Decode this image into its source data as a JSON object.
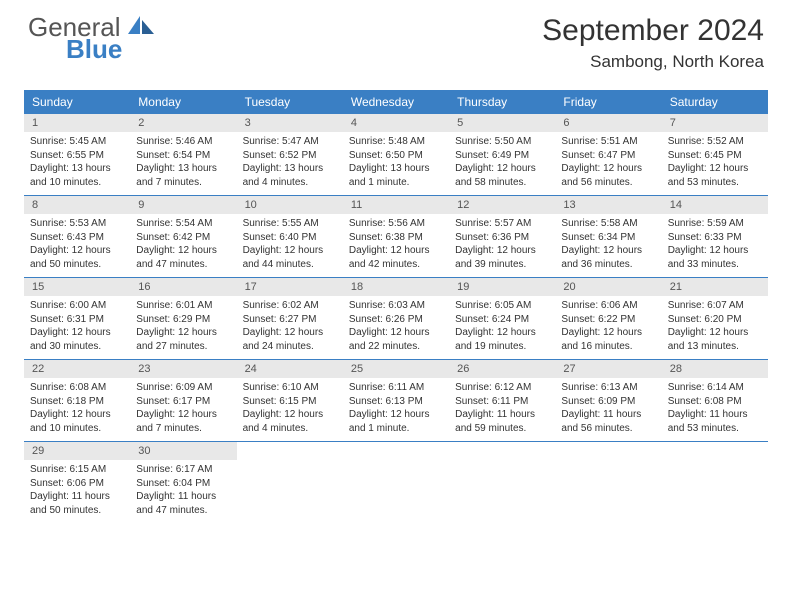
{
  "logo": {
    "text_top": "General",
    "text_bottom": "Blue"
  },
  "title": "September 2024",
  "location": "Sambong, North Korea",
  "colors": {
    "header_bg": "#3a7fc4",
    "daynum_bg": "#e8e8e8",
    "text": "#333333",
    "logo_gray": "#555555",
    "logo_blue": "#3a7fc4",
    "week_border": "#3a7fc4",
    "page_bg": "#ffffff"
  },
  "typography": {
    "month_title_size": 30,
    "location_size": 17,
    "weekday_size": 12,
    "daynum_size": 11,
    "body_size": 10,
    "logo_size": 26
  },
  "weekdays": [
    "Sunday",
    "Monday",
    "Tuesday",
    "Wednesday",
    "Thursday",
    "Friday",
    "Saturday"
  ],
  "days": [
    {
      "n": 1,
      "sunrise": "5:45 AM",
      "sunset": "6:55 PM",
      "daylight": "13 hours and 10 minutes."
    },
    {
      "n": 2,
      "sunrise": "5:46 AM",
      "sunset": "6:54 PM",
      "daylight": "13 hours and 7 minutes."
    },
    {
      "n": 3,
      "sunrise": "5:47 AM",
      "sunset": "6:52 PM",
      "daylight": "13 hours and 4 minutes."
    },
    {
      "n": 4,
      "sunrise": "5:48 AM",
      "sunset": "6:50 PM",
      "daylight": "13 hours and 1 minute."
    },
    {
      "n": 5,
      "sunrise": "5:50 AM",
      "sunset": "6:49 PM",
      "daylight": "12 hours and 58 minutes."
    },
    {
      "n": 6,
      "sunrise": "5:51 AM",
      "sunset": "6:47 PM",
      "daylight": "12 hours and 56 minutes."
    },
    {
      "n": 7,
      "sunrise": "5:52 AM",
      "sunset": "6:45 PM",
      "daylight": "12 hours and 53 minutes."
    },
    {
      "n": 8,
      "sunrise": "5:53 AM",
      "sunset": "6:43 PM",
      "daylight": "12 hours and 50 minutes."
    },
    {
      "n": 9,
      "sunrise": "5:54 AM",
      "sunset": "6:42 PM",
      "daylight": "12 hours and 47 minutes."
    },
    {
      "n": 10,
      "sunrise": "5:55 AM",
      "sunset": "6:40 PM",
      "daylight": "12 hours and 44 minutes."
    },
    {
      "n": 11,
      "sunrise": "5:56 AM",
      "sunset": "6:38 PM",
      "daylight": "12 hours and 42 minutes."
    },
    {
      "n": 12,
      "sunrise": "5:57 AM",
      "sunset": "6:36 PM",
      "daylight": "12 hours and 39 minutes."
    },
    {
      "n": 13,
      "sunrise": "5:58 AM",
      "sunset": "6:34 PM",
      "daylight": "12 hours and 36 minutes."
    },
    {
      "n": 14,
      "sunrise": "5:59 AM",
      "sunset": "6:33 PM",
      "daylight": "12 hours and 33 minutes."
    },
    {
      "n": 15,
      "sunrise": "6:00 AM",
      "sunset": "6:31 PM",
      "daylight": "12 hours and 30 minutes."
    },
    {
      "n": 16,
      "sunrise": "6:01 AM",
      "sunset": "6:29 PM",
      "daylight": "12 hours and 27 minutes."
    },
    {
      "n": 17,
      "sunrise": "6:02 AM",
      "sunset": "6:27 PM",
      "daylight": "12 hours and 24 minutes."
    },
    {
      "n": 18,
      "sunrise": "6:03 AM",
      "sunset": "6:26 PM",
      "daylight": "12 hours and 22 minutes."
    },
    {
      "n": 19,
      "sunrise": "6:05 AM",
      "sunset": "6:24 PM",
      "daylight": "12 hours and 19 minutes."
    },
    {
      "n": 20,
      "sunrise": "6:06 AM",
      "sunset": "6:22 PM",
      "daylight": "12 hours and 16 minutes."
    },
    {
      "n": 21,
      "sunrise": "6:07 AM",
      "sunset": "6:20 PM",
      "daylight": "12 hours and 13 minutes."
    },
    {
      "n": 22,
      "sunrise": "6:08 AM",
      "sunset": "6:18 PM",
      "daylight": "12 hours and 10 minutes."
    },
    {
      "n": 23,
      "sunrise": "6:09 AM",
      "sunset": "6:17 PM",
      "daylight": "12 hours and 7 minutes."
    },
    {
      "n": 24,
      "sunrise": "6:10 AM",
      "sunset": "6:15 PM",
      "daylight": "12 hours and 4 minutes."
    },
    {
      "n": 25,
      "sunrise": "6:11 AM",
      "sunset": "6:13 PM",
      "daylight": "12 hours and 1 minute."
    },
    {
      "n": 26,
      "sunrise": "6:12 AM",
      "sunset": "6:11 PM",
      "daylight": "11 hours and 59 minutes."
    },
    {
      "n": 27,
      "sunrise": "6:13 AM",
      "sunset": "6:09 PM",
      "daylight": "11 hours and 56 minutes."
    },
    {
      "n": 28,
      "sunrise": "6:14 AM",
      "sunset": "6:08 PM",
      "daylight": "11 hours and 53 minutes."
    },
    {
      "n": 29,
      "sunrise": "6:15 AM",
      "sunset": "6:06 PM",
      "daylight": "11 hours and 50 minutes."
    },
    {
      "n": 30,
      "sunrise": "6:17 AM",
      "sunset": "6:04 PM",
      "daylight": "11 hours and 47 minutes."
    }
  ],
  "labels": {
    "sunrise": "Sunrise:",
    "sunset": "Sunset:",
    "daylight": "Daylight:"
  },
  "layout": {
    "start_weekday": 0,
    "total_days": 30,
    "columns": 7
  }
}
